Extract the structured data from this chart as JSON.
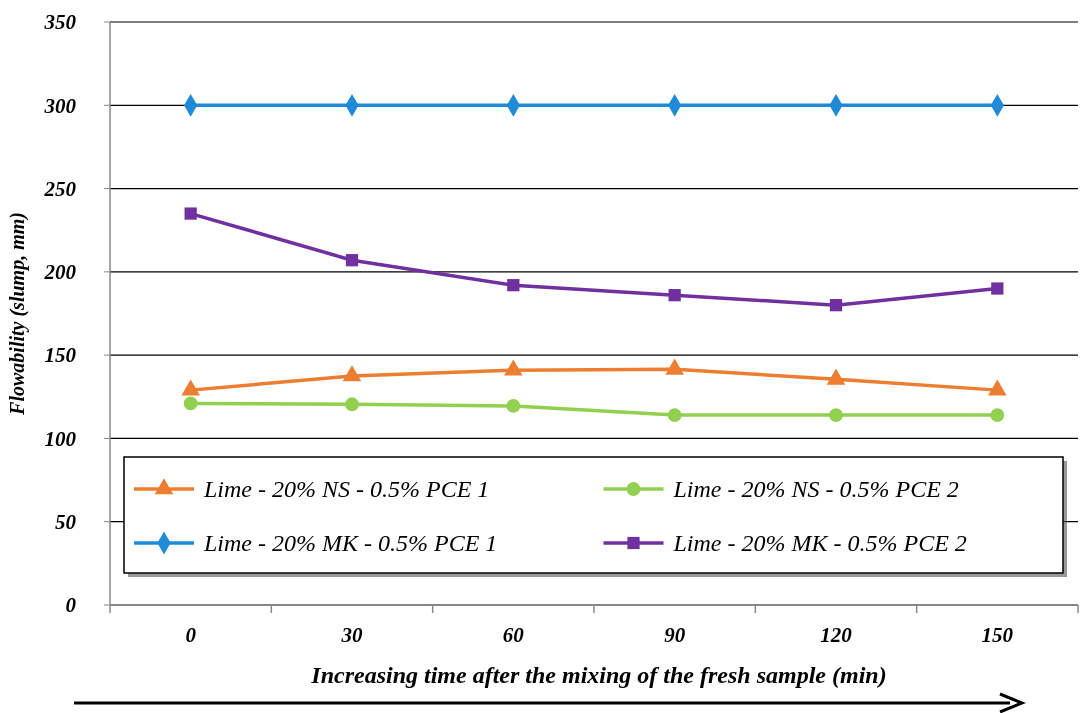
{
  "chart_data": {
    "type": "line",
    "xlabel": "Increasing time after the mixing of the fresh sample (min)",
    "ylabel": "Flowability (slump, mm)",
    "categories": [
      "0",
      "30",
      "60",
      "90",
      "120",
      "150"
    ],
    "series": [
      {
        "name": "Lime - 20% NS - 0.5% PCE 1",
        "color": "#ed7d31",
        "marker": "triangle",
        "values": [
          129,
          137.5,
          141,
          141.5,
          135.5,
          129
        ]
      },
      {
        "name": "Lime - 20% NS - 0.5% PCE 2",
        "color": "#92d050",
        "marker": "circle",
        "values": [
          121,
          120.5,
          119.5,
          114,
          114,
          114
        ]
      },
      {
        "name": "Lime - 20% MK - 0.5% PCE 1",
        "color": "#1f8ad8",
        "marker": "diamond",
        "values": [
          300,
          300,
          300,
          300,
          300,
          300
        ]
      },
      {
        "name": "Lime - 20% MK - 0.5% PCE 2",
        "color": "#7030a0",
        "marker": "square",
        "values": [
          235,
          207,
          192,
          186,
          180,
          190
        ]
      }
    ],
    "ylim": [
      0,
      350
    ],
    "yticks": [
      0,
      50,
      100,
      150,
      200,
      250,
      300,
      350
    ],
    "grid": "y",
    "legend": "bottom",
    "line_style": "solid"
  }
}
